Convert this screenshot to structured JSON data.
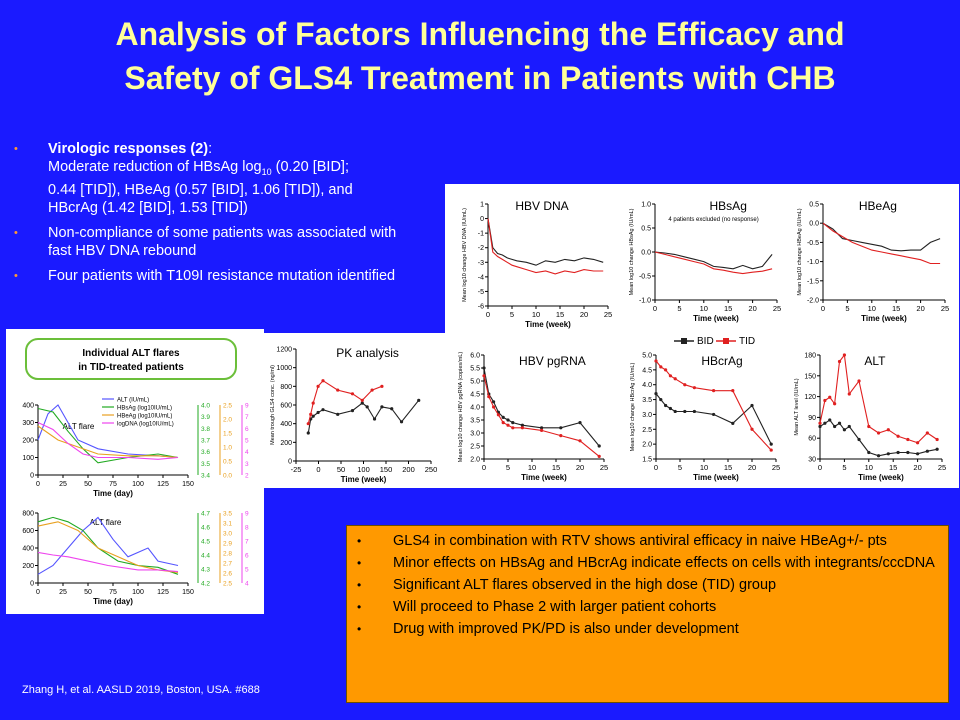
{
  "slide": {
    "title_line1": "Analysis of Factors Influencing the Efficacy and",
    "title_line2": "Safety of GLS4 Treatment in Patients with CHB",
    "citation": "Zhang H, et al. AASLD 2019, Boston, USA. #688"
  },
  "bullets": [
    {
      "head": "Virologic responses (2)",
      "line1": "Moderate reduction of HBsAg log",
      "sub": "10",
      "line1b": " (0.20 [BID];",
      "line2": "0.44 [TID]),  HBeAg (0.57 [BID], 1.06 [TID]),  and",
      "line3": "HBcrAg (1.42 [BID],  1.53 [TID])"
    },
    {
      "text": "Non-compliance of some patients was associated with fast HBV DNA rebound"
    },
    {
      "text": "Four patients with T109I resistance mutation identified"
    }
  ],
  "summary_bullets": [
    "GLS4 in combination with RTV shows antiviral efficacy in naive HBeAg+/- pts",
    "Minor effects on HBsAg and HBcrAg indicate effects on cells with integrants/cccDNA",
    "Significant ALT flares observed in the high dose (TID) group",
    "Will proceed to Phase 2 with larger patient cohorts",
    "Drug with improved PK/PD is also under development"
  ],
  "colors": {
    "bid": "#222222",
    "tid": "#e02020",
    "alt": "#5555ff",
    "hbsag": "#22aa22",
    "hbeag": "#e8a020",
    "dna": "#ee44ee"
  },
  "legend": {
    "bid": "BID",
    "tid": "TID"
  },
  "chart_data": [
    {
      "type": "line",
      "title": "HBV DNA",
      "xlabel": "Time (week)",
      "ylabel": "Mean log10 change HBV DNA (IU/mL)",
      "xlim": [
        0,
        25
      ],
      "ylim": [
        -6,
        1
      ],
      "xticks": [
        "0",
        "5",
        "10",
        "15",
        "20",
        "25"
      ],
      "yticks": [
        "1",
        "0",
        "-1",
        "-2",
        "-3",
        "-4",
        "-5",
        "-6"
      ],
      "series": [
        {
          "name": "BID",
          "x": [
            0,
            1,
            2,
            3,
            4,
            5,
            6,
            8,
            10,
            12,
            14,
            16,
            18,
            20,
            22,
            24
          ],
          "y": [
            0,
            -2,
            -2.4,
            -2.5,
            -2.7,
            -2.8,
            -2.9,
            -3.0,
            -3.2,
            -2.9,
            -3.0,
            -2.8,
            -2.9,
            -2.7,
            -2.8,
            -3.0
          ]
        },
        {
          "name": "TID",
          "x": [
            0,
            1,
            2,
            3,
            4,
            5,
            6,
            8,
            10,
            12,
            14,
            16,
            18,
            20,
            22,
            24
          ],
          "y": [
            0,
            -2.3,
            -2.6,
            -2.8,
            -3.0,
            -3.2,
            -3.3,
            -3.5,
            -3.7,
            -3.6,
            -3.8,
            -3.6,
            -3.7,
            -3.5,
            -3.6,
            -3.6
          ]
        }
      ]
    },
    {
      "type": "line",
      "title": "HBsAg",
      "annotation": "4 patients excluded (no response)",
      "xlabel": "Time (week)",
      "ylabel": "Mean log10 change HBsAg (IU/mL)",
      "xlim": [
        0,
        25
      ],
      "ylim": [
        -1.0,
        1.0
      ],
      "xticks": [
        "0",
        "5",
        "10",
        "15",
        "20",
        "25"
      ],
      "yticks": [
        "1.0",
        "0.5",
        "0.0",
        "-0.5",
        "-1.0"
      ],
      "series": [
        {
          "name": "BID",
          "x": [
            0,
            2,
            4,
            6,
            8,
            10,
            12,
            14,
            16,
            18,
            20,
            22,
            24
          ],
          "y": [
            0,
            -0.02,
            -0.05,
            -0.1,
            -0.15,
            -0.2,
            -0.3,
            -0.32,
            -0.35,
            -0.28,
            -0.35,
            -0.3,
            -0.05
          ]
        },
        {
          "name": "TID",
          "x": [
            0,
            2,
            4,
            6,
            8,
            10,
            12,
            14,
            16,
            18,
            20,
            22,
            24
          ],
          "y": [
            0,
            -0.05,
            -0.1,
            -0.15,
            -0.2,
            -0.25,
            -0.35,
            -0.38,
            -0.42,
            -0.45,
            -0.42,
            -0.4,
            -0.35
          ]
        }
      ]
    },
    {
      "type": "line",
      "title": "HBeAg",
      "xlabel": "Time (week)",
      "ylabel": "Mean log10 change HBeAg (IU/mL)",
      "xlim": [
        0,
        25
      ],
      "ylim": [
        -2.0,
        0.5
      ],
      "xticks": [
        "0",
        "5",
        "10",
        "15",
        "20",
        "25"
      ],
      "yticks": [
        "0.5",
        "0.0",
        "-0.5",
        "-1.0",
        "-1.5",
        "-2.0"
      ],
      "series": [
        {
          "name": "BID",
          "x": [
            0,
            2,
            4,
            6,
            8,
            10,
            12,
            14,
            16,
            18,
            20,
            22,
            24
          ],
          "y": [
            0,
            -0.15,
            -0.4,
            -0.45,
            -0.5,
            -0.55,
            -0.6,
            -0.7,
            -0.72,
            -0.7,
            -0.7,
            -0.5,
            -0.4
          ]
        },
        {
          "name": "TID",
          "x": [
            0,
            2,
            4,
            6,
            8,
            10,
            12,
            14,
            16,
            18,
            20,
            22,
            24
          ],
          "y": [
            0,
            -0.2,
            -0.35,
            -0.5,
            -0.6,
            -0.7,
            -0.75,
            -0.8,
            -0.85,
            -0.9,
            -0.95,
            -1.05,
            -1.05
          ]
        }
      ]
    },
    {
      "type": "line",
      "title": "PK analysis",
      "xlabel": "Time (week)",
      "ylabel": "Mean trough GLS4 conc. (ng/ml)",
      "xlim": [
        -25,
        250
      ],
      "ylim": [
        0,
        1200
      ],
      "xticks": [
        "-25",
        "0",
        "50",
        "100",
        "150",
        "200",
        "250"
      ],
      "yticks": [
        "1200",
        "1000",
        "800",
        "600",
        "400",
        "200",
        "0"
      ],
      "series": [
        {
          "name": "BID",
          "x": [
            0,
            5,
            10,
            20,
            30,
            60,
            90,
            110,
            120,
            135,
            150,
            170,
            190,
            225
          ],
          "y": [
            300,
            450,
            480,
            520,
            550,
            500,
            540,
            620,
            580,
            450,
            580,
            560,
            420,
            650
          ]
        },
        {
          "name": "TID",
          "x": [
            0,
            5,
            10,
            20,
            30,
            60,
            90,
            110,
            130,
            150
          ],
          "y": [
            400,
            500,
            620,
            800,
            860,
            760,
            720,
            650,
            760,
            800
          ]
        }
      ]
    },
    {
      "type": "line",
      "title": "HBV pgRNA",
      "xlabel": "Time (week)",
      "ylabel": "Mean log10 change HBV pgRNA (copies/mL)",
      "xlim": [
        0,
        25
      ],
      "ylim": [
        2.0,
        6.0
      ],
      "xticks": [
        "0",
        "5",
        "10",
        "15",
        "20",
        "25"
      ],
      "yticks": [
        "6.0",
        "5.5",
        "5.0",
        "4.5",
        "4.0",
        "3.5",
        "3.0",
        "2.5",
        "2.0"
      ],
      "series": [
        {
          "name": "BID",
          "x": [
            0,
            1,
            2,
            3,
            4,
            5,
            6,
            8,
            12,
            16,
            20,
            24
          ],
          "y": [
            5.5,
            4.5,
            4.2,
            3.8,
            3.6,
            3.5,
            3.4,
            3.3,
            3.2,
            3.2,
            3.4,
            2.5
          ]
        },
        {
          "name": "TID",
          "x": [
            0,
            1,
            2,
            3,
            4,
            5,
            6,
            8,
            12,
            16,
            20,
            24
          ],
          "y": [
            5.2,
            4.4,
            4.0,
            3.7,
            3.4,
            3.3,
            3.2,
            3.2,
            3.1,
            2.9,
            2.7,
            2.1
          ]
        }
      ]
    },
    {
      "type": "line",
      "title": "HBcrAg",
      "xlabel": "Time (week)",
      "ylabel": "Mean log10 change HBcrAg (IU/mL)",
      "xlim": [
        0,
        25
      ],
      "ylim": [
        1.5,
        5.0
      ],
      "xticks": [
        "0",
        "5",
        "10",
        "15",
        "20",
        "25"
      ],
      "yticks": [
        "5.0",
        "4.5",
        "4.0",
        "3.5",
        "3.0",
        "2.5",
        "2.0",
        "1.5"
      ],
      "series": [
        {
          "name": "BID",
          "x": [
            0,
            1,
            2,
            3,
            4,
            6,
            8,
            12,
            16,
            20,
            24
          ],
          "y": [
            3.7,
            3.5,
            3.3,
            3.2,
            3.1,
            3.1,
            3.1,
            3.0,
            2.7,
            3.3,
            2.0
          ]
        },
        {
          "name": "TID",
          "x": [
            0,
            1,
            2,
            3,
            4,
            6,
            8,
            12,
            16,
            20,
            24
          ],
          "y": [
            4.8,
            4.6,
            4.5,
            4.3,
            4.2,
            4.0,
            3.9,
            3.8,
            3.8,
            2.5,
            1.8
          ]
        }
      ]
    },
    {
      "type": "line",
      "title": "ALT",
      "xlabel": "Time (week)",
      "ylabel": "Mean ALT level (IU/mL)",
      "xlim": [
        0,
        25
      ],
      "ylim": [
        30,
        190
      ],
      "xticks": [
        "0",
        "5",
        "10",
        "15",
        "20",
        "25"
      ],
      "yticks": [
        "180",
        "150",
        "120",
        "90",
        "60",
        "30"
      ],
      "series": [
        {
          "name": "BID",
          "x": [
            0,
            1,
            2,
            3,
            4,
            5,
            6,
            8,
            10,
            12,
            14,
            16,
            18,
            20,
            22,
            24
          ],
          "y": [
            80,
            85,
            90,
            80,
            85,
            75,
            80,
            60,
            40,
            35,
            38,
            40,
            40,
            38,
            42,
            45
          ]
        },
        {
          "name": "TID",
          "x": [
            0,
            1,
            2,
            3,
            4,
            5,
            6,
            8,
            10,
            12,
            14,
            16,
            18,
            20,
            22,
            24
          ],
          "y": [
            85,
            120,
            125,
            115,
            180,
            190,
            130,
            150,
            80,
            70,
            75,
            65,
            60,
            55,
            70,
            60
          ]
        }
      ]
    },
    {
      "type": "line",
      "title": "Individual ALT flares in TID-treated patients",
      "annotation": "ALT flare",
      "xlabel": "Time (day)",
      "xlim": [
        0,
        150
      ],
      "ylim": [
        0,
        400
      ],
      "xticks": [
        "0",
        "25",
        "50",
        "75",
        "100",
        "125",
        "150"
      ],
      "yticks": [
        "400",
        "300",
        "200",
        "100",
        "0"
      ],
      "legend": [
        "ALT (IU/mL)",
        "HBsAg (log10IU/mL)",
        "HBeAg (log10IU/mL)",
        "logDNA (log10IU/mL)"
      ],
      "axes_right": [
        {
          "ticks": [
            "4.0",
            "3.9",
            "3.8",
            "3.7",
            "3.6",
            "3.5",
            "3.4"
          ]
        },
        {
          "ticks": [
            "2.5",
            "2.0",
            "1.5",
            "1.0",
            "0.5",
            "0.0"
          ]
        },
        {
          "ticks": [
            "9",
            "7",
            "6",
            "5",
            "4",
            "3",
            "2"
          ]
        }
      ],
      "series": [
        {
          "name": "ALT (IU/mL)",
          "x": [
            0,
            10,
            20,
            30,
            40,
            60,
            90,
            120,
            140
          ],
          "y": [
            200,
            350,
            400,
            300,
            200,
            150,
            120,
            110,
            100
          ]
        },
        {
          "name": "HBsAg (log10IU/mL)",
          "x": [
            0,
            15,
            30,
            45,
            60,
            90,
            120,
            140
          ],
          "y": [
            380,
            360,
            250,
            150,
            70,
            100,
            120,
            100
          ]
        },
        {
          "name": "HBeAg (log10IU/mL)",
          "x": [
            0,
            20,
            40,
            60,
            90,
            120,
            140
          ],
          "y": [
            280,
            200,
            160,
            120,
            110,
            110,
            100
          ]
        },
        {
          "name": "logDNA (log10IU/mL)",
          "x": [
            0,
            15,
            30,
            45,
            60,
            90,
            120,
            140
          ],
          "y": [
            300,
            260,
            180,
            120,
            100,
            100,
            90,
            100
          ]
        }
      ]
    },
    {
      "type": "line",
      "annotation": "ALT flare",
      "xlabel": "Time (day)",
      "xlim": [
        0,
        150
      ],
      "ylim": [
        0,
        800
      ],
      "xticks": [
        "0",
        "25",
        "50",
        "75",
        "100",
        "125",
        "150"
      ],
      "yticks": [
        "800",
        "600",
        "400",
        "200",
        "0"
      ],
      "axes_right": [
        {
          "ticks": [
            "4.7",
            "4.6",
            "4.5",
            "4.4",
            "4.3",
            "4.2"
          ]
        },
        {
          "ticks": [
            "3.5",
            "3.1",
            "3.0",
            "2.9",
            "2.8",
            "2.7",
            "2.6",
            "2.5"
          ]
        },
        {
          "ticks": [
            "9",
            "8",
            "7",
            "6",
            "5",
            "4"
          ]
        }
      ],
      "series": [
        {
          "name": "ALT (IU/mL)",
          "x": [
            0,
            15,
            30,
            45,
            60,
            75,
            90,
            110,
            120,
            140
          ],
          "y": [
            100,
            200,
            400,
            600,
            750,
            500,
            300,
            400,
            250,
            200
          ]
        },
        {
          "name": "HBsAg (log10IU/mL)",
          "x": [
            0,
            15,
            30,
            45,
            60,
            80,
            100,
            120,
            140
          ],
          "y": [
            700,
            750,
            700,
            600,
            400,
            250,
            200,
            180,
            100
          ]
        },
        {
          "name": "HBeAg (log10IU/mL)",
          "x": [
            0,
            20,
            40,
            60,
            80,
            100,
            120,
            140
          ],
          "y": [
            650,
            700,
            600,
            400,
            300,
            200,
            150,
            120
          ]
        },
        {
          "name": "logDNA (log10IU/mL)",
          "x": [
            0,
            15,
            30,
            50,
            70,
            100,
            120,
            140
          ],
          "y": [
            350,
            320,
            300,
            250,
            200,
            150,
            150,
            130
          ]
        }
      ]
    }
  ]
}
